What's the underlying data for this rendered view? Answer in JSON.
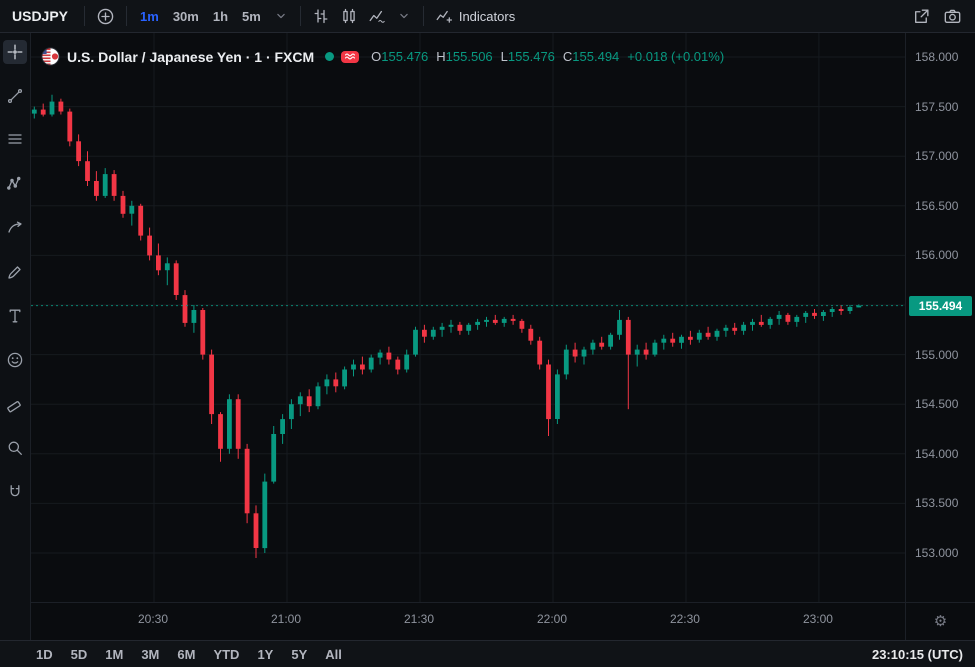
{
  "top_toolbar": {
    "symbol": "USDJPY",
    "intervals": [
      "1m",
      "30m",
      "1h",
      "5m"
    ],
    "active_interval": "1m",
    "style_icons": [
      "bars-icon",
      "candles-icon",
      "line-style-icon"
    ],
    "right_buttons": [
      {
        "name": "share-button",
        "icon": "share-icon"
      },
      {
        "name": "screenshot-button",
        "icon": "camera-icon"
      }
    ],
    "indicators_label": "Indicators",
    "icons": [
      "plus-circle-icon",
      "chevron-down-icon",
      "indicators-icon"
    ]
  },
  "sidebar": {
    "tools": [
      "crosshair",
      "trend-line",
      "fib-retracement",
      "pattern",
      "prediction",
      "brush",
      "text",
      "emoji",
      "measure",
      "zoom",
      "magnet"
    ],
    "active_tool": "crosshair"
  },
  "legend": {
    "title": "U.S. Dollar / Japanese Yen · 1 · FXCM",
    "labels": {
      "o": "O",
      "h": "H",
      "l": "L",
      "c": "C"
    },
    "ohlc": {
      "o": "155.476",
      "h": "155.506",
      "l": "155.476",
      "c": "155.494",
      "change": "+0.018 (+0.01%)"
    },
    "icons": [
      "pair-flag-icon",
      "market-status-icon",
      "delayed-data-icon"
    ]
  },
  "price_axis": {
    "last_price_label": "155.494"
  },
  "bottom_toolbar": {
    "ranges": [
      "1D",
      "5D",
      "1M",
      "3M",
      "6M",
      "YTD",
      "1Y",
      "5Y",
      "All"
    ],
    "clock": "23:10:15 (UTC)"
  },
  "colors": {
    "up": "#089981",
    "down": "#f23645",
    "accent": "#2962ff",
    "grid": "#161a1f",
    "background": "#0a0c0f",
    "axis_text": "#8f949e"
  },
  "chart_data": {
    "type": "candlestick",
    "title": "U.S. Dollar / Japanese Yen, 1, FXCM",
    "interval": "1m",
    "start_time": "20:03",
    "step_minutes": 2,
    "x_ticks": [
      "20:30",
      "21:00",
      "21:30",
      "22:00",
      "22:30",
      "23:00"
    ],
    "y_grid": [
      158.0,
      157.5,
      157.0,
      156.5,
      156.0,
      155.5,
      155.0,
      154.5,
      154.0,
      153.5,
      153.0
    ],
    "last_price": 155.494,
    "candles": [
      [
        157.43,
        157.5,
        157.38,
        157.47
      ],
      [
        157.47,
        157.53,
        157.4,
        157.42
      ],
      [
        157.42,
        157.62,
        157.4,
        157.55
      ],
      [
        157.55,
        157.58,
        157.42,
        157.45
      ],
      [
        157.45,
        157.48,
        157.1,
        157.15
      ],
      [
        157.15,
        157.22,
        156.9,
        156.95
      ],
      [
        156.95,
        157.05,
        156.7,
        156.75
      ],
      [
        156.75,
        156.85,
        156.55,
        156.6
      ],
      [
        156.6,
        156.88,
        156.58,
        156.82
      ],
      [
        156.82,
        156.86,
        156.55,
        156.6
      ],
      [
        156.6,
        156.65,
        156.38,
        156.42
      ],
      [
        156.42,
        156.55,
        156.3,
        156.5
      ],
      [
        156.5,
        156.52,
        156.15,
        156.2
      ],
      [
        156.2,
        156.28,
        155.95,
        156.0
      ],
      [
        156.0,
        156.12,
        155.8,
        155.85
      ],
      [
        155.85,
        155.98,
        155.7,
        155.92
      ],
      [
        155.92,
        155.95,
        155.55,
        155.6
      ],
      [
        155.6,
        155.65,
        155.28,
        155.32
      ],
      [
        155.32,
        155.5,
        155.22,
        155.45
      ],
      [
        155.45,
        155.47,
        154.95,
        155.0
      ],
      [
        155.0,
        155.05,
        154.3,
        154.4
      ],
      [
        154.4,
        154.42,
        153.92,
        154.05
      ],
      [
        154.05,
        154.6,
        154.0,
        154.55
      ],
      [
        154.55,
        154.6,
        153.95,
        154.05
      ],
      [
        154.05,
        154.1,
        153.3,
        153.4
      ],
      [
        153.4,
        153.48,
        152.95,
        153.05
      ],
      [
        153.05,
        153.8,
        153.0,
        153.72
      ],
      [
        153.72,
        154.28,
        153.7,
        154.2
      ],
      [
        154.2,
        154.4,
        154.1,
        154.35
      ],
      [
        154.35,
        154.55,
        154.25,
        154.5
      ],
      [
        154.5,
        154.62,
        154.38,
        154.58
      ],
      [
        154.58,
        154.65,
        154.42,
        154.48
      ],
      [
        154.48,
        154.72,
        154.45,
        154.68
      ],
      [
        154.68,
        154.8,
        154.6,
        154.75
      ],
      [
        154.75,
        154.82,
        154.62,
        154.68
      ],
      [
        154.68,
        154.88,
        154.65,
        154.85
      ],
      [
        154.85,
        154.95,
        154.78,
        154.9
      ],
      [
        154.9,
        154.98,
        154.8,
        154.85
      ],
      [
        154.85,
        155.0,
        154.82,
        154.97
      ],
      [
        154.97,
        155.05,
        154.9,
        155.02
      ],
      [
        155.02,
        155.08,
        154.9,
        154.95
      ],
      [
        154.95,
        154.98,
        154.8,
        154.85
      ],
      [
        154.85,
        155.05,
        154.82,
        155.0
      ],
      [
        155.0,
        155.28,
        154.98,
        155.25
      ],
      [
        155.25,
        155.3,
        155.12,
        155.18
      ],
      [
        155.18,
        155.28,
        155.15,
        155.25
      ],
      [
        155.25,
        155.32,
        155.18,
        155.28
      ],
      [
        155.28,
        155.35,
        155.22,
        155.3
      ],
      [
        155.3,
        155.33,
        155.2,
        155.24
      ],
      [
        155.24,
        155.32,
        155.2,
        155.3
      ],
      [
        155.3,
        155.36,
        155.25,
        155.33
      ],
      [
        155.33,
        155.38,
        155.28,
        155.35
      ],
      [
        155.35,
        155.4,
        155.3,
        155.32
      ],
      [
        155.32,
        155.38,
        155.28,
        155.36
      ],
      [
        155.36,
        155.4,
        155.3,
        155.34
      ],
      [
        155.34,
        155.36,
        155.22,
        155.26
      ],
      [
        155.26,
        155.3,
        155.1,
        155.14
      ],
      [
        155.14,
        155.18,
        154.85,
        154.9
      ],
      [
        154.9,
        154.95,
        154.18,
        154.35
      ],
      [
        154.35,
        154.85,
        154.3,
        154.8
      ],
      [
        154.8,
        155.1,
        154.75,
        155.05
      ],
      [
        155.05,
        155.12,
        154.92,
        154.98
      ],
      [
        154.98,
        155.08,
        154.9,
        155.05
      ],
      [
        155.05,
        155.15,
        155.0,
        155.12
      ],
      [
        155.12,
        155.18,
        155.05,
        155.08
      ],
      [
        155.08,
        155.22,
        155.05,
        155.2
      ],
      [
        155.2,
        155.45,
        155.15,
        155.35
      ],
      [
        155.35,
        155.38,
        154.45,
        155.0
      ],
      [
        155.0,
        155.1,
        154.88,
        155.05
      ],
      [
        155.05,
        155.12,
        154.95,
        155.0
      ],
      [
        155.0,
        155.15,
        154.98,
        155.12
      ],
      [
        155.12,
        155.2,
        155.05,
        155.16
      ],
      [
        155.16,
        155.22,
        155.08,
        155.12
      ],
      [
        155.12,
        155.2,
        155.06,
        155.18
      ],
      [
        155.18,
        155.24,
        155.1,
        155.15
      ],
      [
        155.15,
        155.25,
        155.12,
        155.22
      ],
      [
        155.22,
        155.28,
        155.15,
        155.18
      ],
      [
        155.18,
        155.26,
        155.14,
        155.24
      ],
      [
        155.24,
        155.3,
        155.18,
        155.27
      ],
      [
        155.27,
        155.32,
        155.2,
        155.24
      ],
      [
        155.24,
        155.33,
        155.2,
        155.3
      ],
      [
        155.3,
        155.36,
        155.24,
        155.33
      ],
      [
        155.33,
        155.4,
        155.28,
        155.3
      ],
      [
        155.3,
        155.38,
        155.26,
        155.36
      ],
      [
        155.36,
        155.44,
        155.3,
        155.4
      ],
      [
        155.4,
        155.42,
        155.3,
        155.33
      ],
      [
        155.33,
        155.4,
        155.28,
        155.38
      ],
      [
        155.38,
        155.44,
        155.32,
        155.42
      ],
      [
        155.42,
        155.46,
        155.36,
        155.39
      ],
      [
        155.39,
        155.45,
        155.34,
        155.43
      ],
      [
        155.43,
        155.48,
        155.38,
        155.46
      ],
      [
        155.46,
        155.5,
        155.4,
        155.44
      ],
      [
        155.44,
        155.5,
        155.41,
        155.48
      ],
      [
        155.476,
        155.506,
        155.476,
        155.494
      ]
    ]
  }
}
